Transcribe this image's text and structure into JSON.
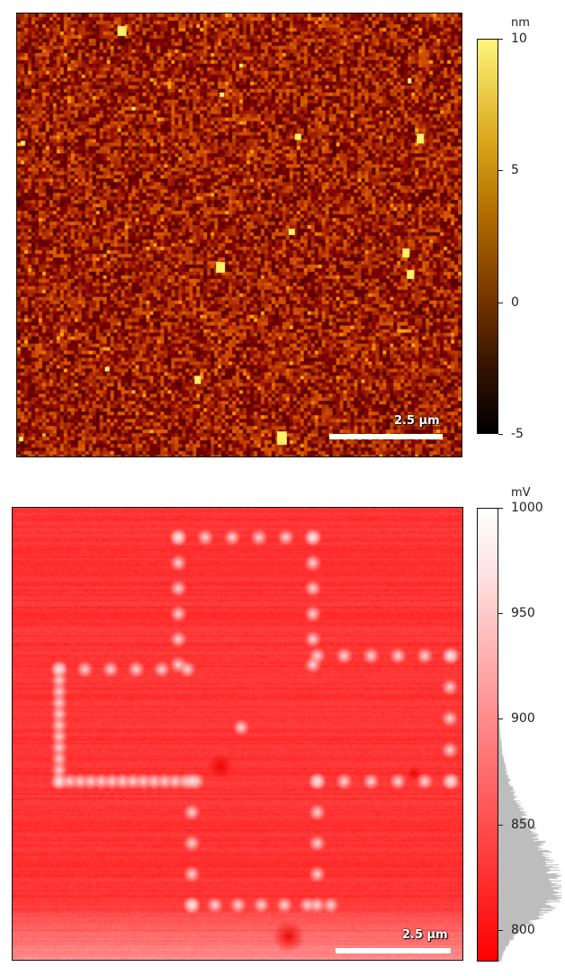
{
  "panels": [
    {
      "id": "height",
      "colormap": "afmhot",
      "scale_bar": {
        "label": "2.5 µm",
        "length_um": 2.5
      },
      "colorbar": {
        "unit": "nm",
        "min": -5,
        "max": 10,
        "ticks": [
          10,
          5,
          0,
          -5
        ],
        "tick_labels": [
          "10",
          "5",
          "0",
          "-5"
        ],
        "colors": {
          "low": "#000000",
          "mid": "#b06b00",
          "high": "#fff57a"
        }
      }
    },
    {
      "id": "potential",
      "colormap": "red-white",
      "scale_bar": {
        "label": "2.5 µm",
        "length_um": 2.5
      },
      "colorbar": {
        "unit": "mV",
        "min": 785,
        "max": 1000,
        "ticks": [
          1000,
          950,
          900,
          850,
          800
        ],
        "tick_labels": [
          "1000",
          "950",
          "900",
          "850",
          "800"
        ],
        "colors": {
          "low": "#ff0000",
          "high": "#ffffff"
        },
        "histogram": true,
        "histogram_color": "#bdbdbd"
      }
    }
  ]
}
